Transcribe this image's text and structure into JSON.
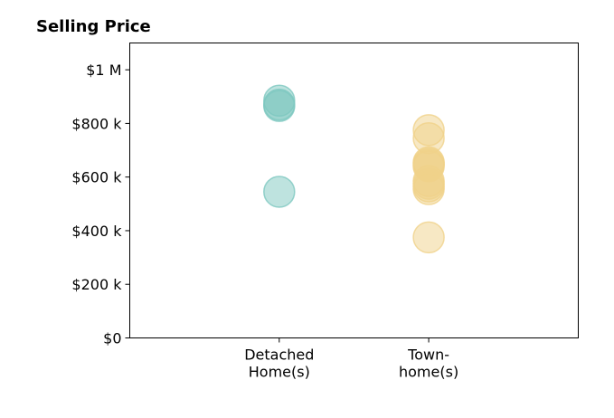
{
  "chart_data": {
    "type": "scatter",
    "title": "Selling Price",
    "xlabel": "",
    "ylabel": "",
    "ylim": [
      0,
      1100000
    ],
    "xlim": [
      0,
      3
    ],
    "y_ticks": [
      {
        "value": 0,
        "label": "$0"
      },
      {
        "value": 200000,
        "label": "$200 k"
      },
      {
        "value": 400000,
        "label": "$400 k"
      },
      {
        "value": 600000,
        "label": "$600 k"
      },
      {
        "value": 800000,
        "label": "$800 k"
      },
      {
        "value": 1000000,
        "label": "$1 M"
      }
    ],
    "categories": [
      {
        "x": 1,
        "label_lines": [
          "Detached",
          "Home(s)"
        ]
      },
      {
        "x": 2,
        "label_lines": [
          "Town-",
          "home(s)"
        ]
      }
    ],
    "grid": false,
    "legend": "none",
    "series": [
      {
        "category_index": 0,
        "color": "#7ec8c0",
        "points": [
          885000,
          870000,
          865000,
          545000
        ]
      },
      {
        "category_index": 1,
        "color": "#f0d28a",
        "points": [
          775000,
          745000,
          655000,
          650000,
          645000,
          640000,
          585000,
          575000,
          565000,
          555000,
          375000
        ]
      }
    ]
  }
}
